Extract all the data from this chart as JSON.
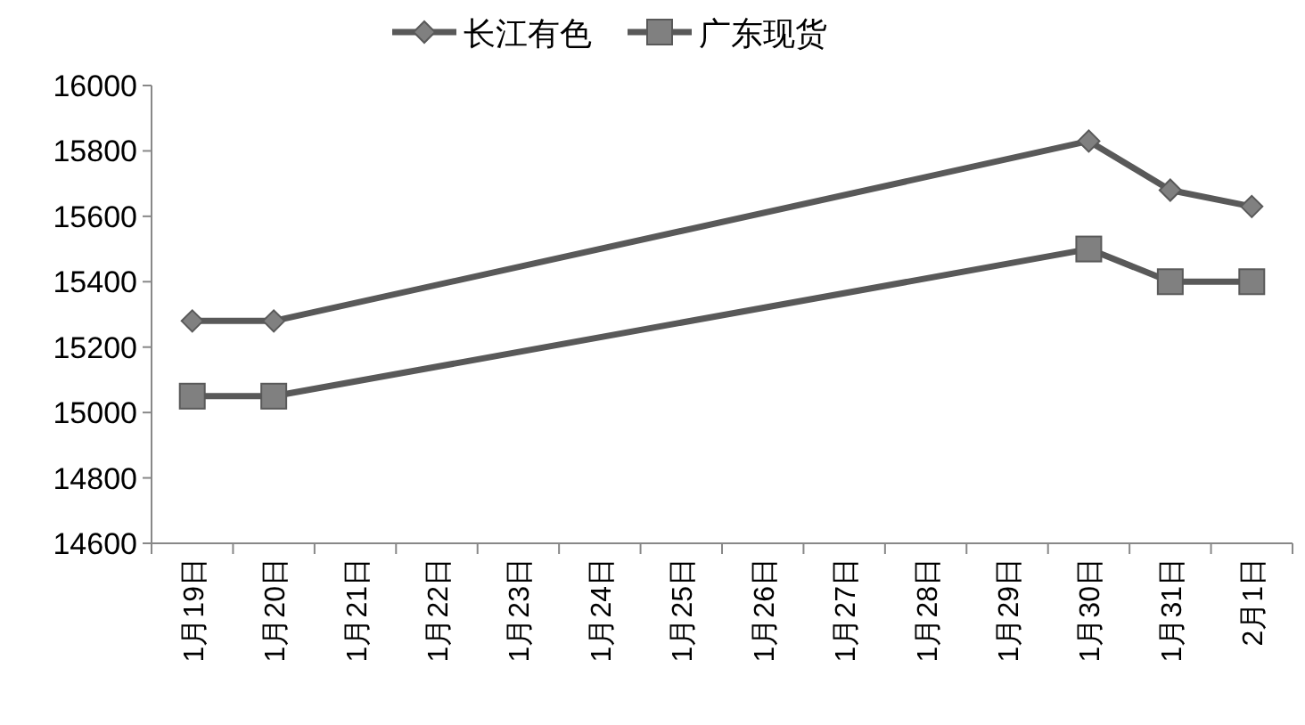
{
  "chart_data": {
    "type": "line",
    "categories": [
      "1月19日",
      "1月20日",
      "1月21日",
      "1月22日",
      "1月23日",
      "1月24日",
      "1月25日",
      "1月26日",
      "1月27日",
      "1月28日",
      "1月29日",
      "1月30日",
      "1月31日",
      "2月1日"
    ],
    "series": [
      {
        "name": "长江有色",
        "color": "#595959",
        "marker": "diamond",
        "values": [
          15280,
          15280,
          null,
          null,
          null,
          null,
          null,
          null,
          null,
          null,
          null,
          15830,
          15680,
          15630
        ]
      },
      {
        "name": "广东现货",
        "color": "#595959",
        "marker": "square",
        "values": [
          15050,
          15050,
          null,
          null,
          null,
          null,
          null,
          null,
          null,
          null,
          null,
          15500,
          15400,
          15400
        ]
      }
    ],
    "ylim": [
      14600,
      16000
    ],
    "yticks": [
      14600,
      14800,
      15000,
      15200,
      15400,
      15600,
      15800,
      16000
    ],
    "legend": "top",
    "grid": false,
    "line_style": "solid"
  }
}
